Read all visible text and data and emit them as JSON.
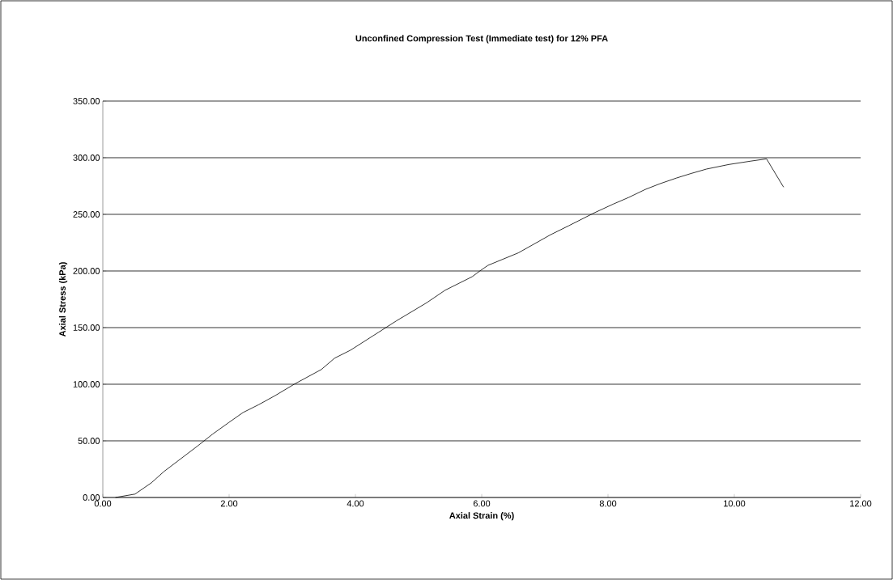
{
  "chart_data": {
    "type": "line",
    "title": "Unconfined Compression Test (Immediate test) for 12% PFA",
    "xlabel": "Axial Strain (%)",
    "ylabel": "Axial Stress (kPa)",
    "x": [
      0.2,
      0.51,
      0.77,
      0.97,
      1.23,
      1.49,
      1.74,
      1.99,
      2.22,
      2.47,
      2.73,
      3.03,
      3.46,
      3.67,
      3.92,
      4.37,
      4.65,
      5.13,
      5.42,
      5.85,
      5.97,
      6.1,
      6.58,
      7.09,
      7.38,
      7.77,
      8.08,
      8.33,
      8.59,
      8.82,
      9.08,
      9.31,
      9.56,
      9.91,
      10.26,
      10.51,
      10.78
    ],
    "series": [
      {
        "color": "#000000",
        "values": [
          0,
          3,
          13,
          23,
          34,
          45,
          56,
          66,
          75,
          82,
          90,
          100,
          113,
          123,
          130,
          146,
          156,
          172,
          183,
          195,
          200,
          205,
          216,
          232,
          240,
          251,
          259,
          265,
          272,
          277,
          282,
          286,
          290,
          294,
          297,
          299,
          274
        ]
      }
    ],
    "xlim": [
      0,
      12
    ],
    "ylim": [
      0,
      350
    ],
    "xticks": [
      {
        "value": 0,
        "label": "0.00"
      },
      {
        "value": 2,
        "label": "2.00"
      },
      {
        "value": 4,
        "label": "4.00"
      },
      {
        "value": 6,
        "label": "6.00"
      },
      {
        "value": 8,
        "label": "8.00"
      },
      {
        "value": 10,
        "label": "10.00"
      },
      {
        "value": 12,
        "label": "12.00"
      }
    ],
    "yticks": [
      {
        "value": 0,
        "label": "0.00"
      },
      {
        "value": 50,
        "label": "50.00"
      },
      {
        "value": 100,
        "label": "100.00"
      },
      {
        "value": 150,
        "label": "150.00"
      },
      {
        "value": 200,
        "label": "200.00"
      },
      {
        "value": 250,
        "label": "250.00"
      },
      {
        "value": 300,
        "label": "300.00"
      },
      {
        "value": 350,
        "label": "350.00"
      }
    ],
    "grid": "y",
    "marker": "none",
    "line_style": "solid"
  }
}
